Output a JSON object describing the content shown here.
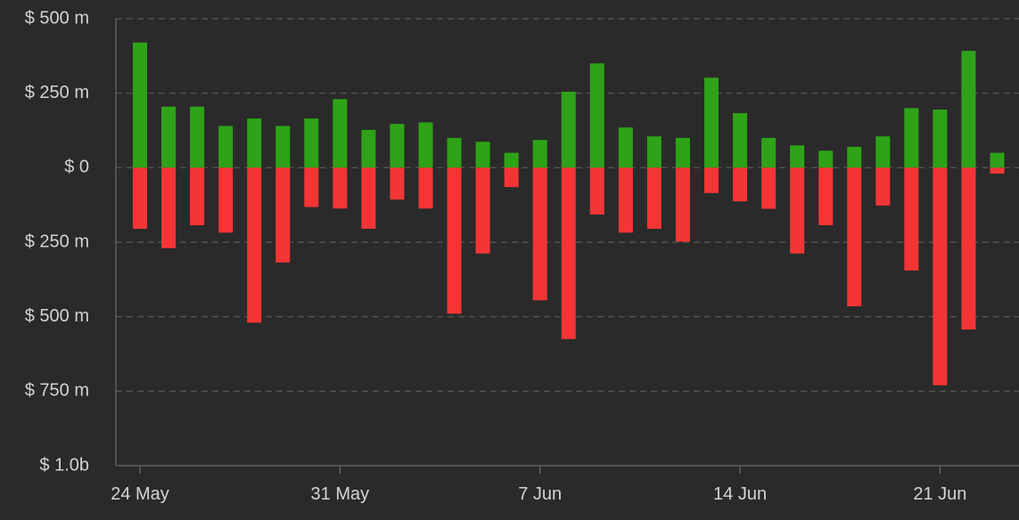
{
  "chart_data": {
    "type": "bar",
    "title": "",
    "xlabel": "",
    "ylabel": "",
    "x": [
      "2024-05-24",
      "2024-05-25",
      "2024-05-26",
      "2024-05-27",
      "2024-05-28",
      "2024-05-29",
      "2024-05-30",
      "2024-05-31",
      "2024-06-01",
      "2024-06-02",
      "2024-06-03",
      "2024-06-04",
      "2024-06-05",
      "2024-06-06",
      "2024-06-07",
      "2024-06-08",
      "2024-06-09",
      "2024-06-10",
      "2024-06-11",
      "2024-06-12",
      "2024-06-13",
      "2024-06-14",
      "2024-06-15",
      "2024-06-16",
      "2024-06-17",
      "2024-06-18",
      "2024-06-19",
      "2024-06-20",
      "2024-06-21",
      "2024-06-22",
      "2024-06-23"
    ],
    "x_tick_values": [
      "2024-05-24",
      "2024-05-31",
      "2024-06-07",
      "2024-06-14",
      "2024-06-21"
    ],
    "x_tick_labels": [
      "24 May",
      "31 May",
      "7 Jun",
      "14 Jun",
      "21 Jun"
    ],
    "y_tick_values": [
      500,
      250,
      0,
      -250,
      -500,
      -750,
      -1000
    ],
    "y_tick_labels": [
      "$ 500 m",
      "$ 250 m",
      "$ 0",
      "$ 250 m",
      "$ 500 m",
      "$ 750 m",
      "$ 1.0b"
    ],
    "ylim": [
      -1000,
      500
    ],
    "grid": true,
    "series": [
      {
        "color": "#2ea318",
        "values": [
          420,
          205,
          205,
          140,
          165,
          140,
          165,
          230,
          127,
          147,
          152,
          100,
          87,
          50,
          93,
          255,
          350,
          135,
          105,
          100,
          302,
          183,
          100,
          75,
          57,
          70,
          105,
          200,
          195,
          392,
          50
        ]
      },
      {
        "color": "#f53535",
        "values": [
          -205,
          -270,
          -193,
          -218,
          -520,
          -318,
          -132,
          -137,
          -205,
          -107,
          -137,
          -490,
          -288,
          -65,
          -445,
          -575,
          -157,
          -218,
          -205,
          -248,
          -85,
          -113,
          -138,
          -288,
          -193,
          -465,
          -127,
          -345,
          -730,
          -543,
          -20
        ]
      }
    ]
  }
}
